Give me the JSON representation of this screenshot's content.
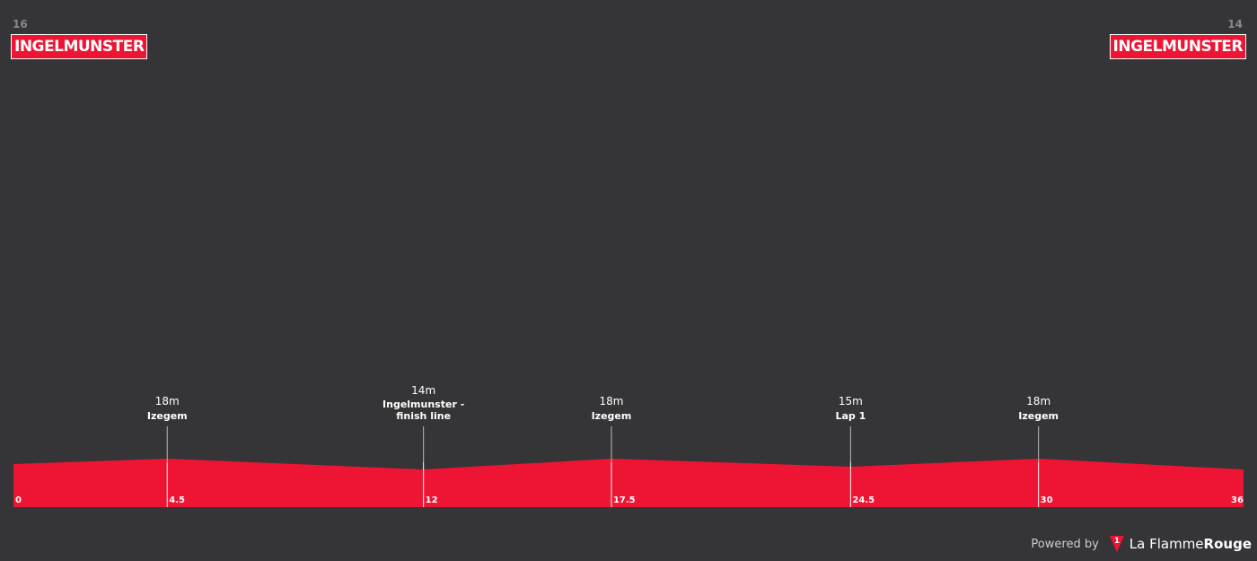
{
  "chart_data": {
    "type": "area",
    "start_elevation": 16,
    "start_name": "INGELMUNSTER",
    "finish_elevation": 14,
    "finish_name": "INGELMUNSTER",
    "x": [
      4.5,
      12,
      17.5,
      24.5,
      30
    ],
    "values": [
      18,
      14,
      18,
      15,
      18
    ],
    "value_labels": [
      "18m",
      "14m",
      "18m",
      "15m",
      "18m"
    ],
    "names": [
      "Izegem",
      "Ingelmunster - finish line",
      "Izegem",
      "Lap 1",
      "Izegem"
    ],
    "xlim": [
      0,
      36
    ],
    "xticks": [
      0,
      4.5,
      12,
      17.5,
      24.5,
      30,
      36
    ],
    "color": "#ee1433"
  },
  "footer": {
    "powered_by": "Powered by",
    "logo_number": "1",
    "brand_light": "La Flamme",
    "brand_bold": "Rouge"
  }
}
